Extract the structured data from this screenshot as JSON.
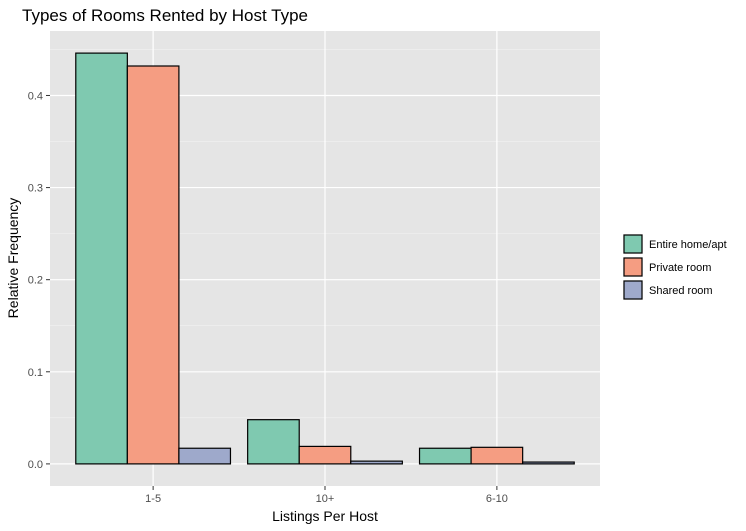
{
  "chart_data": {
    "type": "bar",
    "title": "Types of Rooms Rented by Host Type",
    "xlabel": "Listings Per Host",
    "ylabel": "Relative Frequency",
    "categories": [
      "1-5",
      "10+",
      "6-10"
    ],
    "series": [
      {
        "name": "Entire home/apt",
        "color": "#7fc9b0",
        "values": [
          0.446,
          0.048,
          0.017
        ]
      },
      {
        "name": "Private room",
        "color": "#f59d82",
        "values": [
          0.432,
          0.019,
          0.018
        ]
      },
      {
        "name": "Shared room",
        "color": "#9ea9cb",
        "values": [
          0.017,
          0.003,
          0.002
        ]
      }
    ],
    "ylim": [
      -0.024,
      0.47
    ],
    "yticks": [
      0.0,
      0.1,
      0.2,
      0.3,
      0.4
    ],
    "ytick_labels": [
      "0.0",
      "0.1",
      "0.2",
      "0.3",
      "0.4"
    ],
    "grid": true,
    "legend_position": "right"
  }
}
